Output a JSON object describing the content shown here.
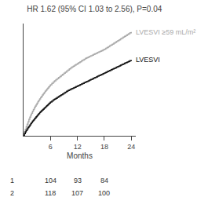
{
  "chart_data": {
    "type": "line",
    "title": "HR 1.62 (95% CI 1.03 to 2.56), P=0.04",
    "xlabel": "Months",
    "xlim": [
      0,
      25
    ],
    "xticks": [
      6,
      12,
      18,
      24
    ],
    "ylim": [
      0,
      0.52
    ],
    "yticks": [],
    "tick_labels": "x",
    "grid": false,
    "line_style": "step",
    "series": [
      {
        "name": "LVESVI ≥59 mL/m²",
        "color": "#aaaaaa",
        "x": [
          0,
          0.2,
          0.4,
          0.6,
          0.8,
          1.0,
          1.2,
          1.4,
          1.6,
          1.8,
          2.0,
          2.2,
          2.4,
          2.6,
          2.8,
          3.0,
          3.2,
          3.4,
          3.6,
          3.8,
          4.0,
          4.2,
          4.4,
          4.6,
          4.8,
          5.0,
          5.2,
          5.4,
          5.6,
          5.8,
          6.0,
          6.3,
          6.6,
          6.9,
          7.2,
          7.5,
          7.8,
          8.1,
          8.4,
          8.7,
          9.0,
          9.3,
          9.6,
          9.9,
          10.2,
          10.5,
          10.8,
          11.1,
          11.4,
          11.7,
          12.0,
          12.3,
          12.6,
          12.9,
          13.2,
          13.5,
          13.8,
          14.1,
          14.4,
          14.7,
          15.0,
          15.3,
          15.6,
          15.9,
          16.2,
          16.5,
          16.8,
          17.1,
          17.4,
          17.7,
          18.0,
          18.3,
          18.6,
          18.9,
          19.2,
          19.5,
          19.8,
          20.1,
          20.4,
          20.7,
          21.0,
          21.3,
          21.6,
          21.9,
          22.2,
          22.5,
          22.8,
          23.1,
          23.4,
          23.7,
          24.0
        ],
        "values": [
          0,
          0.018,
          0.03,
          0.042,
          0.054,
          0.065,
          0.076,
          0.086,
          0.096,
          0.105,
          0.114,
          0.122,
          0.13,
          0.137,
          0.144,
          0.151,
          0.158,
          0.165,
          0.171,
          0.177,
          0.183,
          0.189,
          0.195,
          0.2,
          0.206,
          0.211,
          0.216,
          0.221,
          0.226,
          0.231,
          0.236,
          0.243,
          0.249,
          0.255,
          0.26,
          0.265,
          0.27,
          0.275,
          0.28,
          0.285,
          0.29,
          0.295,
          0.3,
          0.305,
          0.31,
          0.315,
          0.319,
          0.323,
          0.327,
          0.331,
          0.335,
          0.339,
          0.343,
          0.347,
          0.351,
          0.355,
          0.359,
          0.362,
          0.365,
          0.368,
          0.371,
          0.374,
          0.377,
          0.38,
          0.383,
          0.386,
          0.389,
          0.392,
          0.395,
          0.398,
          0.401,
          0.405,
          0.409,
          0.413,
          0.417,
          0.421,
          0.425,
          0.429,
          0.433,
          0.437,
          0.441,
          0.445,
          0.449,
          0.453,
          0.457,
          0.461,
          0.465,
          0.469,
          0.473,
          0.477,
          0.481
        ]
      },
      {
        "name": "LVESVI",
        "color": "#111111",
        "x": [
          0,
          0.2,
          0.4,
          0.6,
          0.8,
          1.0,
          1.2,
          1.4,
          1.6,
          1.8,
          2.0,
          2.2,
          2.4,
          2.6,
          2.8,
          3.0,
          3.2,
          3.4,
          3.6,
          3.8,
          4.0,
          4.2,
          4.4,
          4.6,
          4.8,
          5.0,
          5.2,
          5.4,
          5.6,
          5.8,
          6.0,
          6.3,
          6.6,
          6.9,
          7.2,
          7.5,
          7.8,
          8.1,
          8.4,
          8.7,
          9.0,
          9.3,
          9.6,
          9.9,
          10.2,
          10.5,
          10.8,
          11.1,
          11.4,
          11.7,
          12.0,
          12.3,
          12.6,
          12.9,
          13.2,
          13.5,
          13.8,
          14.1,
          14.4,
          14.7,
          15.0,
          15.3,
          15.6,
          15.9,
          16.2,
          16.5,
          16.8,
          17.1,
          17.4,
          17.7,
          18.0,
          18.3,
          18.6,
          18.9,
          19.2,
          19.5,
          19.8,
          20.1,
          20.4,
          20.7,
          21.0,
          21.3,
          21.6,
          21.9,
          22.2,
          22.5,
          22.8,
          23.1,
          23.4,
          23.7,
          24.0
        ],
        "values": [
          0,
          0.01,
          0.018,
          0.025,
          0.032,
          0.038,
          0.044,
          0.05,
          0.056,
          0.062,
          0.068,
          0.073,
          0.078,
          0.083,
          0.088,
          0.093,
          0.098,
          0.103,
          0.108,
          0.112,
          0.116,
          0.12,
          0.124,
          0.128,
          0.132,
          0.136,
          0.14,
          0.144,
          0.148,
          0.152,
          0.156,
          0.161,
          0.166,
          0.17,
          0.174,
          0.178,
          0.182,
          0.186,
          0.19,
          0.194,
          0.198,
          0.202,
          0.206,
          0.21,
          0.213,
          0.216,
          0.219,
          0.222,
          0.225,
          0.228,
          0.231,
          0.234,
          0.237,
          0.24,
          0.243,
          0.246,
          0.249,
          0.252,
          0.255,
          0.258,
          0.261,
          0.264,
          0.267,
          0.27,
          0.273,
          0.276,
          0.279,
          0.282,
          0.285,
          0.288,
          0.291,
          0.294,
          0.297,
          0.3,
          0.303,
          0.306,
          0.309,
          0.312,
          0.315,
          0.318,
          0.321,
          0.324,
          0.327,
          0.33,
          0.333,
          0.336,
          0.339,
          0.342,
          0.345,
          0.348,
          0.351
        ]
      }
    ],
    "at_risk": {
      "x": [
        6,
        12,
        18
      ],
      "rows": [
        {
          "name": "1",
          "values": [
            104,
            93,
            84
          ]
        },
        {
          "name": "2",
          "values": [
            118,
            107,
            100
          ]
        }
      ]
    }
  }
}
